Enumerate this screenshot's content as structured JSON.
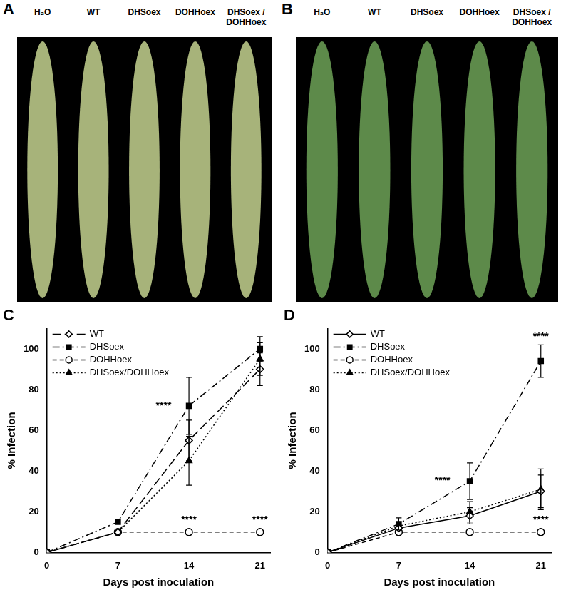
{
  "photo_panels": [
    {
      "title": "A",
      "labels": [
        "H₂O",
        "WT",
        "DHSoex",
        "DOHHoex",
        "DHSoex / DOHHoex"
      ]
    },
    {
      "title": "B",
      "labels": [
        "H₂O",
        "WT",
        "DHSoex",
        "DOHHoex",
        "DHSoex / DOHHoex"
      ]
    }
  ],
  "chart_data": [
    {
      "type": "line",
      "title": "C",
      "x_label": "Days post inoculation",
      "y_label": "% Infection",
      "x": [
        0,
        7,
        14,
        21
      ],
      "xlim": [
        0,
        22
      ],
      "xticks": [
        0,
        7,
        14,
        21
      ],
      "ylim": [
        0,
        110
      ],
      "yticks": [
        0,
        20,
        40,
        60,
        80,
        100
      ],
      "grid": false,
      "legend": "top-left",
      "series": [
        {
          "name": "WT",
          "color": "#000000",
          "marker": "diamond-open",
          "line_style": "longdash",
          "values": [
            0,
            10,
            55,
            90
          ],
          "errors": [
            0,
            0,
            10,
            8
          ]
        },
        {
          "name": "DHSoex",
          "color": "#000000",
          "marker": "square",
          "line_style": "dashdot",
          "values": [
            0,
            15,
            72,
            100
          ],
          "errors": [
            0,
            0,
            14,
            6
          ]
        },
        {
          "name": "DOHHoex",
          "color": "#000000",
          "marker": "circle-open",
          "line_style": "dashed",
          "values": [
            0,
            10,
            10,
            10
          ],
          "errors": [
            0,
            0,
            0,
            0
          ]
        },
        {
          "name": "DHSoex/DOHHoex",
          "color": "#000000",
          "marker": "triangle",
          "line_style": "dotted",
          "values": [
            0,
            10,
            45,
            95
          ],
          "errors": [
            0,
            0,
            12,
            8
          ]
        }
      ],
      "annotations": [
        {
          "text": "****",
          "x": 11.5,
          "y": 72
        },
        {
          "text": "****",
          "x": 14,
          "y": 16
        },
        {
          "text": "****",
          "x": 21,
          "y": 16
        }
      ]
    },
    {
      "type": "line",
      "title": "D",
      "x_label": "Days post inoculation",
      "y_label": "% Infection",
      "x": [
        0,
        7,
        14,
        21
      ],
      "xlim": [
        0,
        22
      ],
      "xticks": [
        0,
        7,
        14,
        21
      ],
      "ylim": [
        0,
        110
      ],
      "yticks": [
        0,
        20,
        40,
        60,
        80,
        100
      ],
      "grid": false,
      "legend": "top-left",
      "series": [
        {
          "name": "WT",
          "color": "#000000",
          "marker": "diamond-open",
          "line_style": "solid",
          "values": [
            0,
            12,
            18,
            30
          ],
          "errors": [
            0,
            0,
            4,
            8
          ]
        },
        {
          "name": "DHSoex",
          "color": "#000000",
          "marker": "square",
          "line_style": "dashdot",
          "values": [
            0,
            14,
            35,
            94
          ],
          "errors": [
            0,
            3,
            9,
            8
          ]
        },
        {
          "name": "DOHHoex",
          "color": "#000000",
          "marker": "circle-open",
          "line_style": "dashed",
          "values": [
            0,
            10,
            10,
            10
          ],
          "errors": [
            0,
            0,
            0,
            0
          ]
        },
        {
          "name": "DHSoex/DOHHoex",
          "color": "#000000",
          "marker": "triangle",
          "line_style": "dotted",
          "values": [
            0,
            13,
            20,
            31
          ],
          "errors": [
            0,
            0,
            5,
            10
          ]
        }
      ],
      "annotations": [
        {
          "text": "****",
          "x": 11.3,
          "y": 35
        },
        {
          "text": "****",
          "x": 21,
          "y": 106
        },
        {
          "text": "****",
          "x": 21,
          "y": 16
        }
      ]
    }
  ]
}
